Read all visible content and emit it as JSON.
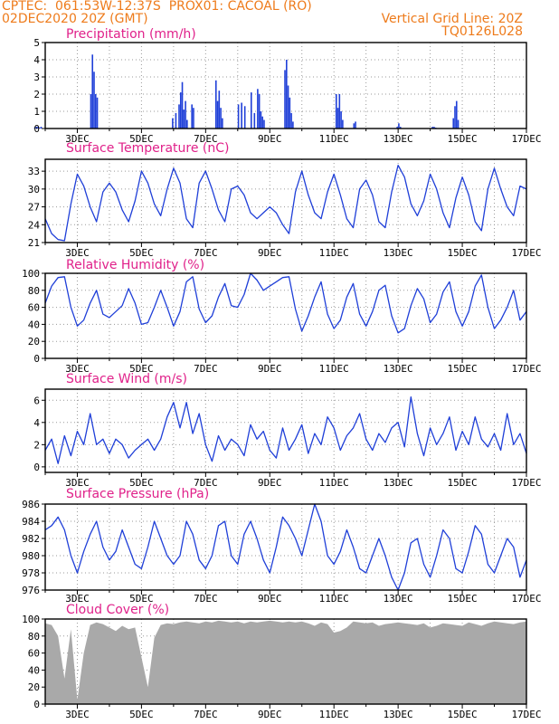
{
  "header": {
    "line1_left": "CPTEC:  061:53W-12:37S  PROX01: CACOAL (RO)",
    "line2_left": "02DEC2020 20Z (GMT)",
    "line2_right": "Vertical Grid Line: 20Z",
    "line3_right": "TQ0126L028"
  },
  "colors": {
    "header": "#ee7b1b",
    "title": "#e0218a",
    "line": "#1f3fd8",
    "bar": "#1f3fd8",
    "cloud": "#a9a9a9"
  },
  "chart_data": [
    {
      "type": "bar",
      "title": "Precipitation (mm/h)",
      "ylim": [
        0,
        5
      ],
      "yticks": [
        "0",
        "1",
        "2",
        "3",
        "4",
        "5"
      ],
      "xticks": [
        "3DEC",
        "5DEC",
        "7DEC",
        "9DEC",
        "11DEC",
        "13DEC",
        "15DEC",
        "17DEC"
      ],
      "x": [
        1.65,
        1.7,
        1.75,
        1.8,
        1.85,
        3.4,
        3.45,
        3.5,
        3.55,
        3.6,
        5.95,
        6.05,
        6.15,
        6.2,
        6.25,
        6.3,
        6.35,
        6.4,
        6.55,
        6.6,
        7.3,
        7.35,
        7.4,
        7.45,
        7.5,
        8.0,
        8.1,
        8.2,
        8.4,
        8.5,
        8.6,
        8.65,
        8.7,
        8.75,
        8.8,
        9.45,
        9.5,
        9.55,
        9.6,
        9.65,
        9.7,
        11.05,
        11.1,
        11.15,
        11.2,
        11.25,
        11.6,
        11.65,
        12.95,
        13.0,
        13.05,
        14.05,
        14.1,
        14.15,
        14.7,
        14.75,
        14.8,
        14.85
      ],
      "values": [
        0.05,
        0.1,
        0.1,
        0.05,
        0.1,
        2.0,
        4.3,
        3.3,
        2.0,
        1.8,
        0.6,
        0.9,
        1.4,
        2.1,
        2.7,
        1.1,
        1.6,
        0.5,
        1.4,
        1.2,
        2.8,
        1.6,
        2.2,
        1.2,
        0.6,
        1.4,
        1.5,
        1.3,
        2.1,
        0.9,
        2.3,
        2.0,
        1.0,
        0.7,
        0.5,
        3.4,
        4.0,
        2.5,
        1.8,
        0.9,
        0.4,
        2.0,
        1.2,
        2.0,
        1.0,
        0.5,
        0.3,
        0.4,
        0.1,
        0.3,
        0.1,
        0.1,
        0.1,
        0.05,
        0.6,
        1.3,
        1.6,
        0.5
      ]
    },
    {
      "type": "line",
      "title": "Surface Temperature (nC)",
      "ylim": [
        21,
        35
      ],
      "yticks": [
        "21",
        "24",
        "27",
        "30",
        "33"
      ],
      "xticks": [
        "3DEC",
        "5DEC",
        "7DEC",
        "9DEC",
        "11DEC",
        "13DEC",
        "15DEC",
        "17DEC"
      ],
      "x": [
        2.0,
        2.2,
        2.4,
        2.6,
        2.8,
        3.0,
        3.2,
        3.4,
        3.6,
        3.8,
        4.0,
        4.2,
        4.4,
        4.6,
        4.8,
        5.0,
        5.2,
        5.4,
        5.6,
        5.8,
        6.0,
        6.2,
        6.4,
        6.6,
        6.8,
        7.0,
        7.2,
        7.4,
        7.6,
        7.8,
        8.0,
        8.2,
        8.4,
        8.6,
        8.8,
        9.0,
        9.2,
        9.4,
        9.6,
        9.8,
        10.0,
        10.2,
        10.4,
        10.6,
        10.8,
        11.0,
        11.2,
        11.4,
        11.6,
        11.8,
        12.0,
        12.2,
        12.4,
        12.6,
        12.8,
        13.0,
        13.2,
        13.4,
        13.6,
        13.8,
        14.0,
        14.2,
        14.4,
        14.6,
        14.8,
        15.0,
        15.2,
        15.4,
        15.6,
        15.8,
        16.0,
        16.2,
        16.4,
        16.6,
        16.8,
        17.0
      ],
      "values": [
        25.0,
        22.5,
        21.5,
        21.3,
        27.5,
        32.5,
        30.5,
        27.0,
        24.5,
        29.5,
        31.0,
        29.5,
        26.5,
        24.5,
        28.0,
        33.0,
        31.0,
        27.5,
        25.5,
        30.0,
        33.5,
        31.0,
        25.0,
        23.5,
        31.0,
        33.0,
        30.0,
        26.5,
        24.5,
        30.0,
        30.5,
        29.0,
        26.0,
        25.0,
        26.0,
        27.0,
        26.0,
        24.0,
        22.5,
        29.5,
        33.0,
        29.0,
        26.0,
        25.0,
        29.5,
        32.5,
        29.0,
        25.0,
        23.5,
        30.0,
        31.5,
        29.0,
        24.5,
        23.5,
        29.5,
        34.0,
        32.0,
        27.5,
        25.5,
        28.0,
        32.5,
        30.0,
        26.0,
        23.5,
        28.5,
        32.0,
        29.0,
        24.5,
        23.0,
        30.0,
        33.5,
        30.0,
        27.0,
        25.5,
        30.5,
        30.0
      ]
    },
    {
      "type": "line",
      "title": "Relative Humidity (%)",
      "ylim": [
        0,
        100
      ],
      "yticks": [
        "0",
        "20",
        "40",
        "60",
        "80",
        "100"
      ],
      "xticks": [
        "3DEC",
        "5DEC",
        "7DEC",
        "9DEC",
        "11DEC",
        "13DEC",
        "15DEC",
        "17DEC"
      ],
      "x": [
        2.0,
        2.2,
        2.4,
        2.6,
        2.8,
        3.0,
        3.2,
        3.4,
        3.6,
        3.8,
        4.0,
        4.2,
        4.4,
        4.6,
        4.8,
        5.0,
        5.2,
        5.4,
        5.6,
        5.8,
        6.0,
        6.2,
        6.4,
        6.6,
        6.8,
        7.0,
        7.2,
        7.4,
        7.6,
        7.8,
        8.0,
        8.2,
        8.4,
        8.6,
        8.8,
        9.0,
        9.2,
        9.4,
        9.6,
        9.8,
        10.0,
        10.2,
        10.4,
        10.6,
        10.8,
        11.0,
        11.2,
        11.4,
        11.6,
        11.8,
        12.0,
        12.2,
        12.4,
        12.6,
        12.8,
        13.0,
        13.2,
        13.4,
        13.6,
        13.8,
        14.0,
        14.2,
        14.4,
        14.6,
        14.8,
        15.0,
        15.2,
        15.4,
        15.6,
        15.8,
        16.0,
        16.2,
        16.4,
        16.6,
        16.8,
        17.0
      ],
      "values": [
        65,
        85,
        95,
        96,
        60,
        38,
        45,
        65,
        80,
        52,
        48,
        55,
        62,
        82,
        65,
        40,
        42,
        60,
        80,
        60,
        38,
        55,
        90,
        96,
        58,
        42,
        50,
        72,
        88,
        62,
        60,
        75,
        100,
        92,
        80,
        85,
        90,
        95,
        96,
        58,
        32,
        50,
        72,
        90,
        52,
        35,
        45,
        72,
        88,
        52,
        38,
        55,
        80,
        86,
        50,
        30,
        35,
        62,
        82,
        70,
        42,
        52,
        78,
        90,
        55,
        38,
        55,
        85,
        98,
        60,
        35,
        45,
        60,
        80,
        45,
        55
      ]
    },
    {
      "type": "line",
      "title": "Surface Wind (m/s)",
      "ylim": [
        -0.5,
        7
      ],
      "yticks": [
        "0",
        "2",
        "4",
        "6"
      ],
      "xticks": [
        "3DEC",
        "5DEC",
        "7DEC",
        "9DEC",
        "11DEC",
        "13DEC",
        "15DEC",
        "17DEC"
      ],
      "x": [
        2.0,
        2.2,
        2.4,
        2.6,
        2.8,
        3.0,
        3.2,
        3.4,
        3.6,
        3.8,
        4.0,
        4.2,
        4.4,
        4.6,
        4.8,
        5.0,
        5.2,
        5.4,
        5.6,
        5.8,
        6.0,
        6.2,
        6.4,
        6.6,
        6.8,
        7.0,
        7.2,
        7.4,
        7.6,
        7.8,
        8.0,
        8.2,
        8.4,
        8.6,
        8.8,
        9.0,
        9.2,
        9.4,
        9.6,
        9.8,
        10.0,
        10.2,
        10.4,
        10.6,
        10.8,
        11.0,
        11.2,
        11.4,
        11.6,
        11.8,
        12.0,
        12.2,
        12.4,
        12.6,
        12.8,
        13.0,
        13.2,
        13.4,
        13.6,
        13.8,
        14.0,
        14.2,
        14.4,
        14.6,
        14.8,
        15.0,
        15.2,
        15.4,
        15.6,
        15.8,
        16.0,
        16.2,
        16.4,
        16.6,
        16.8,
        17.0
      ],
      "values": [
        1.5,
        2.5,
        0.3,
        2.8,
        1.0,
        3.2,
        2.0,
        4.8,
        2.0,
        2.5,
        1.2,
        2.5,
        2.0,
        0.8,
        1.5,
        2.0,
        2.5,
        1.5,
        2.5,
        4.5,
        5.8,
        3.5,
        5.8,
        3.0,
        4.8,
        2.0,
        0.5,
        2.8,
        1.5,
        2.5,
        2.0,
        1.0,
        3.8,
        2.5,
        3.2,
        1.5,
        0.8,
        3.5,
        1.5,
        2.5,
        3.8,
        1.2,
        3.0,
        2.0,
        4.5,
        3.5,
        1.5,
        2.8,
        3.5,
        4.8,
        2.5,
        1.5,
        3.0,
        2.2,
        3.5,
        4.0,
        1.8,
        6.3,
        3.0,
        1.0,
        3.5,
        2.0,
        3.0,
        4.5,
        1.5,
        3.2,
        2.0,
        4.5,
        2.5,
        1.8,
        3.0,
        1.5,
        4.8,
        2.0,
        3.0,
        1.2
      ]
    },
    {
      "type": "line",
      "title": "Surface Pressure (hPa)",
      "ylim": [
        976,
        986
      ],
      "yticks": [
        "976",
        "978",
        "980",
        "982",
        "984",
        "986"
      ],
      "xticks": [
        "3DEC",
        "5DEC",
        "7DEC",
        "9DEC",
        "11DEC",
        "13DEC",
        "15DEC",
        "17DEC"
      ],
      "x": [
        2.0,
        2.2,
        2.4,
        2.6,
        2.8,
        3.0,
        3.2,
        3.4,
        3.6,
        3.8,
        4.0,
        4.2,
        4.4,
        4.6,
        4.8,
        5.0,
        5.2,
        5.4,
        5.6,
        5.8,
        6.0,
        6.2,
        6.4,
        6.6,
        6.8,
        7.0,
        7.2,
        7.4,
        7.6,
        7.8,
        8.0,
        8.2,
        8.4,
        8.6,
        8.8,
        9.0,
        9.2,
        9.4,
        9.6,
        9.8,
        10.0,
        10.2,
        10.4,
        10.6,
        10.8,
        11.0,
        11.2,
        11.4,
        11.6,
        11.8,
        12.0,
        12.2,
        12.4,
        12.6,
        12.8,
        13.0,
        13.2,
        13.4,
        13.6,
        13.8,
        14.0,
        14.2,
        14.4,
        14.6,
        14.8,
        15.0,
        15.2,
        15.4,
        15.6,
        15.8,
        16.0,
        16.2,
        16.4,
        16.6,
        16.8,
        17.0
      ],
      "values": [
        983.0,
        983.5,
        984.5,
        983.0,
        980.0,
        978.0,
        980.5,
        982.5,
        984.0,
        981.0,
        979.5,
        980.5,
        983.0,
        981.0,
        979.0,
        978.5,
        981.0,
        984.0,
        982.0,
        980.0,
        979.0,
        980.0,
        984.0,
        982.5,
        979.5,
        978.5,
        980.0,
        983.5,
        984.0,
        980.0,
        979.0,
        982.5,
        984.0,
        982.0,
        979.5,
        978.0,
        981.0,
        984.5,
        983.5,
        982.0,
        980.0,
        983.0,
        986.0,
        984.0,
        980.0,
        979.0,
        980.5,
        983.0,
        981.0,
        978.5,
        978.0,
        980.0,
        982.0,
        980.0,
        977.5,
        976.0,
        978.0,
        981.5,
        982.0,
        979.0,
        977.5,
        980.0,
        983.0,
        982.0,
        978.5,
        978.0,
        980.5,
        983.5,
        982.5,
        979.0,
        978.0,
        980.0,
        982.0,
        981.0,
        977.5,
        979.5
      ]
    },
    {
      "type": "area",
      "title": "Cloud Cover (%)",
      "ylim": [
        0,
        100
      ],
      "yticks": [
        "0",
        "20",
        "40",
        "60",
        "80",
        "100"
      ],
      "xticks": [
        "3DEC",
        "5DEC",
        "7DEC",
        "9DEC",
        "11DEC",
        "13DEC",
        "15DEC",
        "17DEC"
      ],
      "x": [
        2.0,
        2.2,
        2.4,
        2.6,
        2.8,
        3.0,
        3.2,
        3.4,
        3.6,
        3.8,
        4.0,
        4.2,
        4.4,
        4.6,
        4.8,
        5.0,
        5.2,
        5.4,
        5.6,
        5.8,
        6.0,
        6.2,
        6.4,
        6.6,
        6.8,
        7.0,
        7.2,
        7.4,
        7.6,
        7.8,
        8.0,
        8.2,
        8.4,
        8.6,
        8.8,
        9.0,
        9.2,
        9.4,
        9.6,
        9.8,
        10.0,
        10.2,
        10.4,
        10.6,
        10.8,
        11.0,
        11.2,
        11.4,
        11.6,
        11.8,
        12.0,
        12.2,
        12.4,
        12.6,
        12.8,
        13.0,
        13.2,
        13.4,
        13.6,
        13.8,
        14.0,
        14.2,
        14.4,
        14.6,
        14.8,
        15.0,
        15.2,
        15.4,
        15.6,
        15.8,
        16.0,
        16.2,
        16.4,
        16.6,
        16.8,
        17.0
      ],
      "values": [
        95,
        93,
        80,
        30,
        88,
        5,
        60,
        93,
        96,
        94,
        90,
        86,
        92,
        88,
        90,
        55,
        20,
        78,
        93,
        95,
        94,
        96,
        97,
        96,
        95,
        97,
        96,
        98,
        97,
        96,
        97,
        95,
        97,
        96,
        97,
        98,
        97,
        96,
        97,
        96,
        97,
        95,
        92,
        96,
        94,
        84,
        86,
        90,
        97,
        96,
        95,
        96,
        92,
        94,
        95,
        96,
        95,
        94,
        93,
        95,
        90,
        92,
        95,
        94,
        93,
        92,
        96,
        94,
        92,
        95,
        97,
        96,
        95,
        94,
        96,
        97
      ]
    }
  ]
}
